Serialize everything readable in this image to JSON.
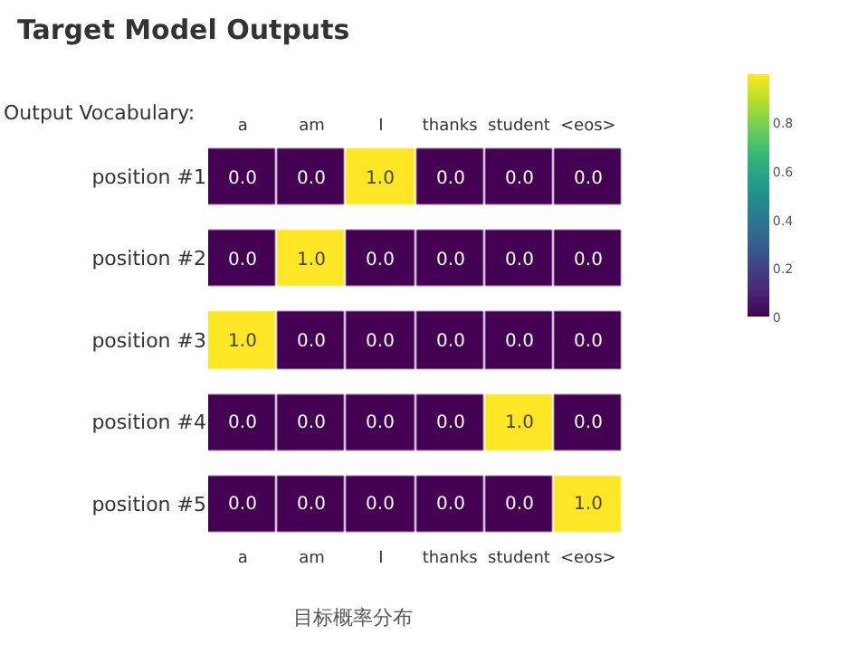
{
  "chart_data": {
    "type": "heatmap",
    "title": "Target Model Outputs",
    "xlabel": "Output Vocabulary:",
    "categories": [
      "a",
      "am",
      "I",
      "thanks",
      "student",
      "<eos>"
    ],
    "y_categories": [
      "position #1",
      "position #2",
      "position #3",
      "position #4",
      "position #5"
    ],
    "cells": [
      [
        0,
        0,
        1,
        0,
        0,
        0
      ],
      [
        0,
        1,
        0,
        0,
        0,
        0
      ],
      [
        1,
        0,
        0,
        0,
        0,
        0
      ],
      [
        0,
        0,
        0,
        0,
        1,
        0
      ],
      [
        0,
        0,
        0,
        0,
        0,
        1
      ]
    ],
    "cell_labels": [
      [
        "0.0",
        "0.0",
        "1.0",
        "0.0",
        "0.0",
        "0.0"
      ],
      [
        "0.0",
        "1.0",
        "0.0",
        "0.0",
        "0.0",
        "0.0"
      ],
      [
        "1.0",
        "0.0",
        "0.0",
        "0.0",
        "0.0",
        "0.0"
      ],
      [
        "0.0",
        "0.0",
        "0.0",
        "0.0",
        "1.0",
        "0.0"
      ],
      [
        "0.0",
        "0.0",
        "0.0",
        "0.0",
        "0.0",
        "1.0"
      ]
    ],
    "clim": [
      0,
      1
    ],
    "cticks": [
      0,
      0.2,
      0.4,
      0.6,
      0.8
    ],
    "annotations": [
      "目标概率分布"
    ]
  }
}
